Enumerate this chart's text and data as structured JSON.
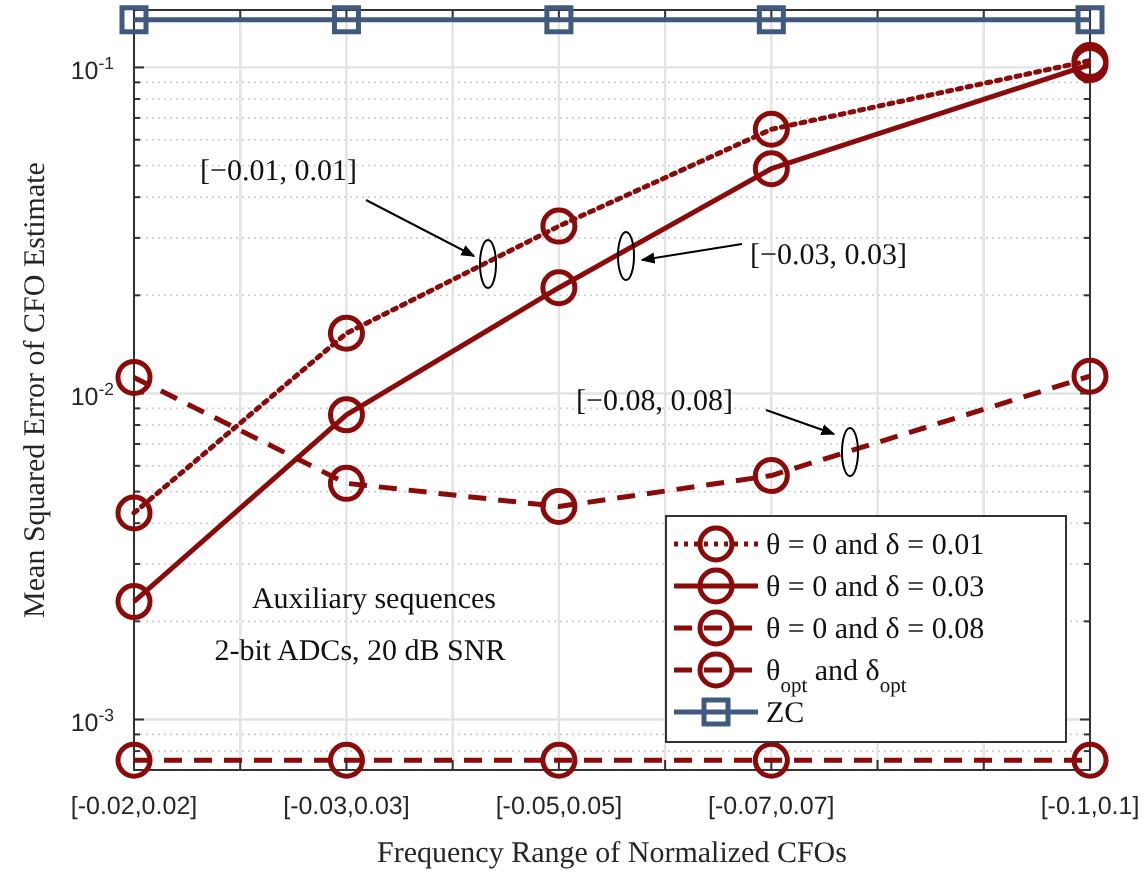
{
  "chart_data": {
    "type": "line",
    "xlabel": "Frequency Range of Normalized CFOs",
    "ylabel": "Mean Squared Error of CFO Estimate",
    "categories": [
      "[-0.02,0.02]",
      null,
      "[-0.03,0.03]",
      null,
      "[-0.05,0.05]",
      null,
      "[-0.07,0.07]",
      null,
      null,
      "[-0.1,0.1]"
    ],
    "log": "y",
    "ylim": [
      0.0007,
      0.15
    ],
    "yticks": [
      {
        "value": 0.001,
        "label": "10$^{-3}$"
      },
      {
        "value": 0.01,
        "label": "10$^{-2}$"
      },
      {
        "value": 0.1,
        "label": "10$^{-1}$"
      }
    ],
    "grid": true,
    "legend": "bottom right",
    "series": [
      {
        "name": "θ = 0 and δ = 0.01",
        "color": "#8b0a0a",
        "line_style": "dotted",
        "marker": "circle",
        "values": [
          0.0043,
          null,
          0.0153,
          null,
          0.0326,
          null,
          0.0646,
          null,
          null,
          0.105
        ]
      },
      {
        "name": "θ = 0 and δ = 0.03",
        "color": "#8b0a0a",
        "line_style": "solid",
        "marker": "circle",
        "values": [
          0.0023,
          null,
          0.0086,
          null,
          0.0211,
          null,
          0.0489,
          null,
          null,
          0.102
        ]
      },
      {
        "name": "θ = 0 and δ = 0.08",
        "color": "#8b0a0a",
        "line_style": "dashed",
        "marker": "circle",
        "values": [
          0.0112,
          null,
          0.0053,
          null,
          0.0045,
          null,
          0.0056,
          null,
          null,
          0.0113
        ]
      },
      {
        "name": "θ$_{opt}$ and δ$_{opt}$",
        "color": "#8b0a0a",
        "line_style": "dashed",
        "marker": "circle",
        "values": [
          0.00075,
          null,
          0.00075,
          null,
          0.00075,
          null,
          0.00075,
          null,
          null,
          0.00075
        ]
      },
      {
        "name": "ZC",
        "color": "#41597f",
        "line_style": "solid",
        "marker": "square",
        "values": [
          0.14,
          null,
          0.14,
          null,
          0.14,
          null,
          0.14,
          null,
          null,
          0.14
        ]
      }
    ],
    "annotations": [
      "[−0.01, 0.01]",
      "[−0.03, 0.03]",
      "[−0.08, 0.08]",
      "Auxiliary sequences",
      "2-bit ADCs, 20 dB SNR"
    ]
  }
}
